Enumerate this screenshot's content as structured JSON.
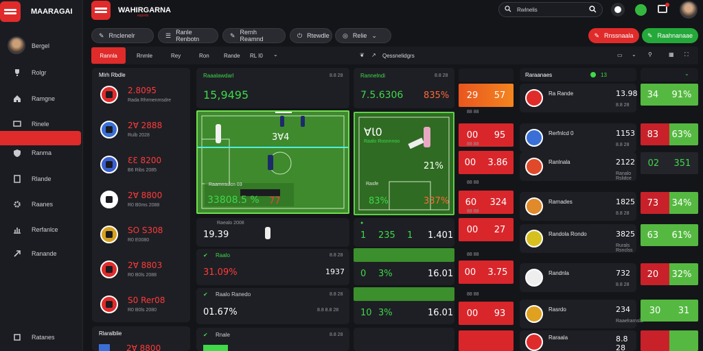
{
  "app": {
    "title": "MAARAGAI",
    "brand": "WAHIRGARNA",
    "brand_sub": "esports"
  },
  "colors": {
    "accent_red": "#e02b2b",
    "accent_green": "#25a83a",
    "bg": "#141519",
    "panel": "#1e1f24"
  },
  "sidebar": {
    "user_name": "Bergel",
    "items": [
      {
        "label": "Rolgr",
        "icon": "trophy-icon"
      },
      {
        "label": "Ramgne",
        "icon": "home-icon"
      },
      {
        "label": "Rinele",
        "icon": "tv-icon"
      },
      {
        "label": "Ranma",
        "icon": "shield-icon"
      },
      {
        "label": "Rlande",
        "icon": "document-icon"
      },
      {
        "label": "Raanes",
        "icon": "gear-icon"
      },
      {
        "label": "Rerfanlce",
        "icon": "chart-icon"
      },
      {
        "label": "Ranande",
        "icon": "share-icon"
      }
    ],
    "footer": "Ratanes"
  },
  "header": {
    "search_placeholder": "Rwlnelis",
    "search_value": "Rwlnelis",
    "filters": [
      "Rnclenelr",
      "Ranle Renbotn",
      "Rernh Reamnd",
      "Rtewdle",
      "Relie"
    ],
    "btn_red": "Rnssnaala",
    "btn_green": "Raahnanaae"
  },
  "subnav": {
    "active": "Rannla",
    "tabs": [
      "Rnmle",
      "Rey",
      "Ron",
      "Rande",
      "RL I0"
    ],
    "right_label": "Qessnelidgrs"
  },
  "matches": {
    "title": "Mlrh Rbdle",
    "footer": "Rlaralblie",
    "items": [
      {
        "score": "2.8095",
        "sub": "Rada Rhrmenmsdre",
        "color": "#e02b2b"
      },
      {
        "score": "2Ɐ 2888",
        "sub": "Rulb 2028",
        "color": "#3a6fd8"
      },
      {
        "score": "ƐƐ 8200",
        "sub": "B6 Ribs 2085",
        "color": "#3a5fd0"
      },
      {
        "score": "2Ɐ 8800",
        "sub": "R0 B0ms 2088",
        "color": "#ffffff"
      },
      {
        "score": "SO S308",
        "sub": "R0 E0080",
        "color": "#d6a020"
      },
      {
        "score": "2Ɐ 8803",
        "sub": "R0 B0ls 2088",
        "color": "#e02b2b"
      },
      {
        "score": "S0 Rer08",
        "sub": "R0 B0ls 2080",
        "color": "#e02b2b"
      }
    ],
    "last_score": "2Ɐ 8800"
  },
  "field1": {
    "title": "Raaalawdarl",
    "meta": "8.8 28",
    "score": "15,9495",
    "overlay_label": "3Ɐ4",
    "bottom_label": "Raamnsulcn 03",
    "bottom_score": "33808.5 %",
    "bottom_value": "77"
  },
  "field2": {
    "title": "Rannelndi",
    "meta": "8.8 28",
    "score": "7.5.6306",
    "pct": "835%",
    "big": "ⱯƖ0",
    "sub": "Raalo Rosnnnoo",
    "pct2": "21%",
    "bottom_label": "Rasfe",
    "bottom_left": "83%",
    "bottom_right": "337%"
  },
  "rows_left": [
    {
      "label": "Raealo 2008",
      "meta": "8.8 28",
      "value": "19.39"
    },
    {
      "label": "Raalo",
      "meta": "8.8 28",
      "value": "31.09%",
      "value2": "1937"
    },
    {
      "label": "Raalo Ranedo",
      "meta": "8.8 28",
      "value": "01.67%",
      "value2": "8.8 8.8 28"
    },
    {
      "label": "Rnale",
      "meta": "8.8 28"
    }
  ],
  "rows_mid": [
    {
      "a": "1",
      "b": "235",
      "c": "1",
      "d": "1.401"
    },
    {
      "a": "0",
      "b": "3%",
      "d": "16.01"
    },
    {
      "a": "10",
      "b": "3%",
      "d": "16.01"
    }
  ],
  "odds": [
    {
      "a": "29",
      "b": "57",
      "style": "orange"
    },
    {
      "a": "00",
      "b": "95",
      "style": "red"
    },
    {
      "a": "00",
      "b": "3.86",
      "style": "red"
    },
    {
      "a": "60",
      "b": "324",
      "style": "red"
    },
    {
      "a": "00",
      "b": "27",
      "style": "red"
    },
    {
      "a": "00",
      "b": "3.75",
      "style": "red"
    },
    {
      "a": "00",
      "b": "93",
      "style": "red"
    }
  ],
  "odds_heads": [
    "88 88",
    "88 88",
    "88 88",
    "88 88",
    "88 88",
    "88 88",
    "88 88"
  ],
  "teams": {
    "header": "Raraanaes",
    "header_val": "13",
    "items": [
      {
        "name": "Ra Rande",
        "val": "13.98",
        "sub": "8.8 28",
        "a": "34",
        "b": "91%",
        "style": "green"
      },
      {
        "name": "Rerfnlcd 0",
        "val": "1153",
        "sub": "8.8 28",
        "a": "83",
        "b": "63%",
        "style": "redgreen"
      },
      {
        "name": "Ranlnala",
        "val": "2122",
        "sub": "Ranalo Rslidce",
        "a": "02",
        "b": "351",
        "style": "darkgreen"
      },
      {
        "name": "Rarnades",
        "val": "1825",
        "sub": "8.8 28",
        "a": "73",
        "b": "34%",
        "style": "redgreen"
      },
      {
        "name": "Randola Rondo",
        "val": "3825",
        "sub": "Rurals Rsnclss",
        "a": "63",
        "b": "61%",
        "style": "green"
      },
      {
        "name": "Randnla",
        "val": "732",
        "sub": "8.8 28",
        "a": "20",
        "b": "32%",
        "style": "redgreen"
      },
      {
        "name": "Rasrdo",
        "val": "234",
        "sub": "Raaelrarnsla",
        "a": "30",
        "b": "31",
        "style": "green"
      },
      {
        "name": "Raraala",
        "val": "8.8 28",
        "style": "red"
      }
    ]
  }
}
